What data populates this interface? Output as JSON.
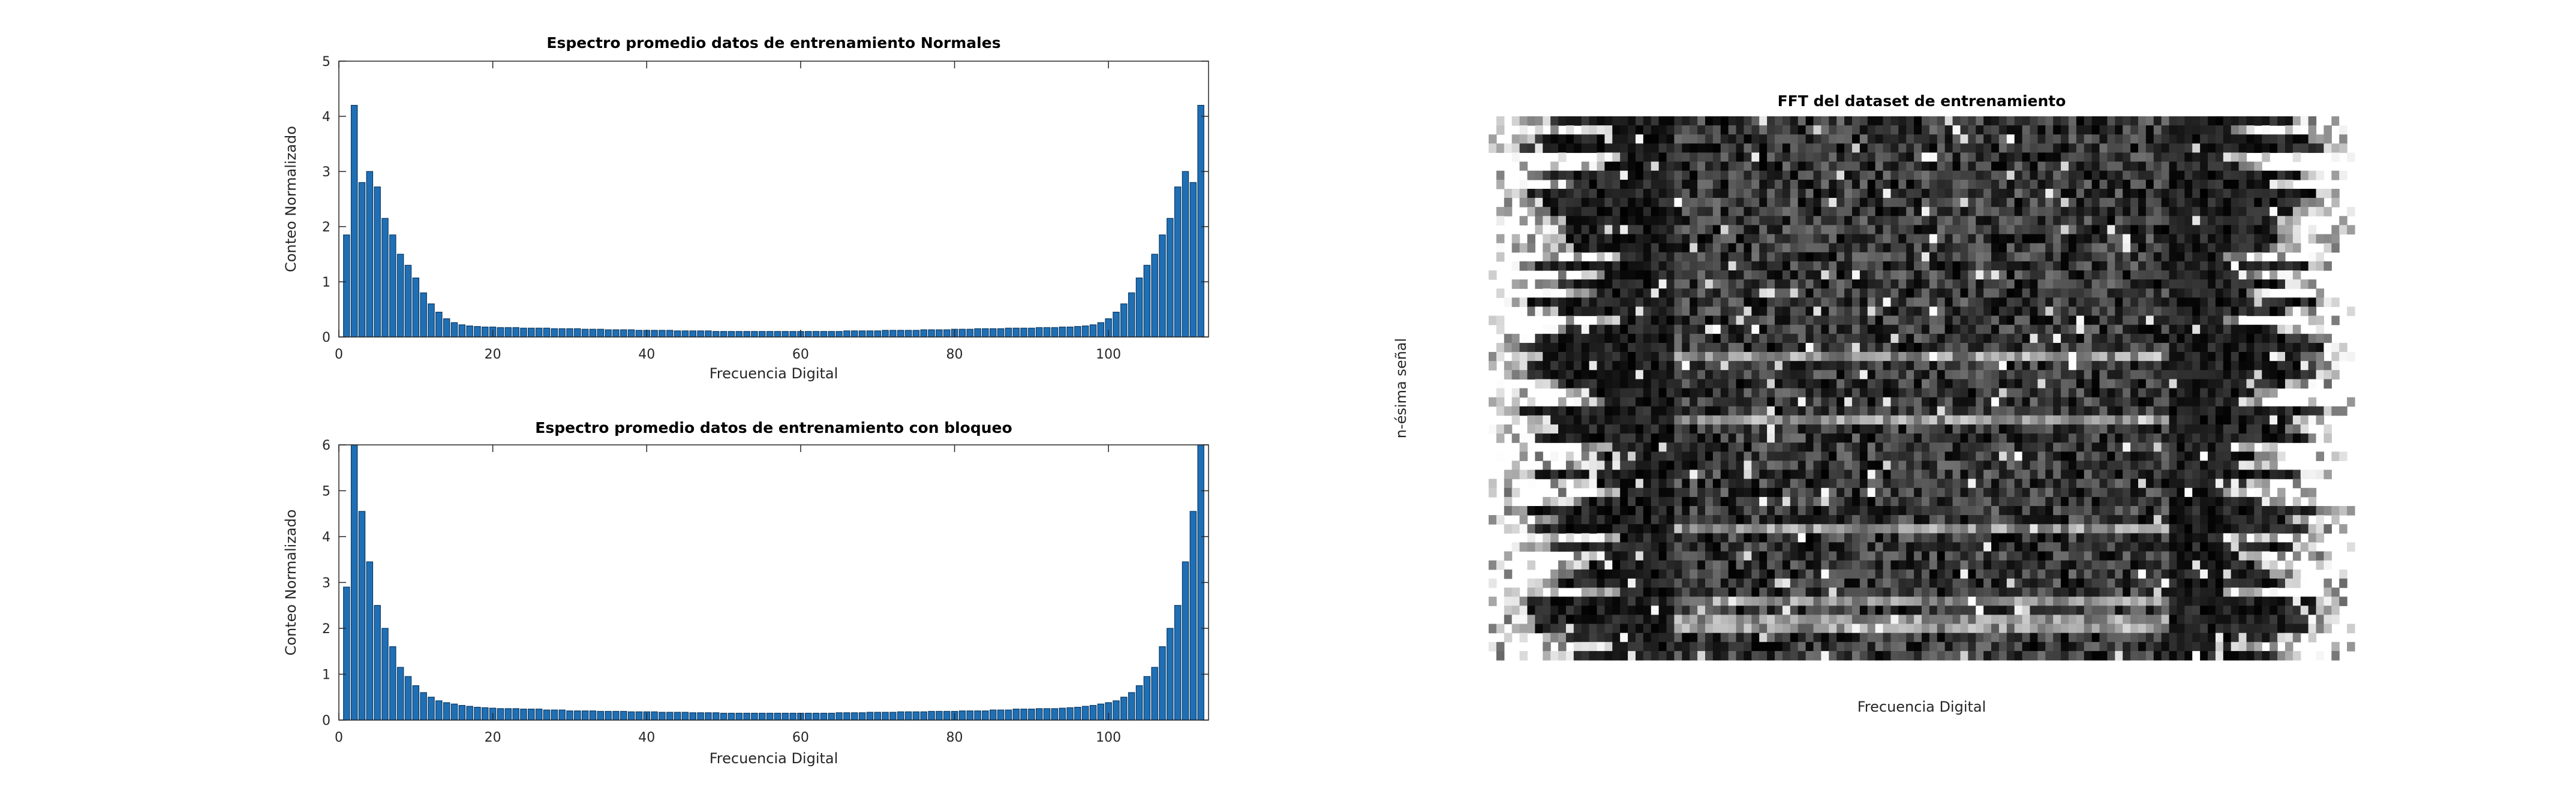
{
  "chart_data": [
    {
      "type": "bar",
      "title": "Espectro promedio datos de entrenamiento Normales",
      "xlabel": "Frecuencia Digital",
      "ylabel": "Conteo Normalizado",
      "color": "#1f6fb5",
      "x": [
        1,
        2,
        3,
        4,
        5,
        6,
        7,
        8,
        9,
        10,
        11,
        12,
        13,
        14,
        15,
        16,
        17,
        18,
        19,
        20,
        21,
        22,
        23,
        24,
        25,
        26,
        27,
        28,
        29,
        30,
        31,
        32,
        33,
        34,
        35,
        36,
        37,
        38,
        39,
        40,
        41,
        42,
        43,
        44,
        45,
        46,
        47,
        48,
        49,
        50,
        51,
        52,
        53,
        54,
        55,
        56,
        57,
        58,
        59,
        60,
        61,
        62,
        63,
        64,
        65,
        66,
        67,
        68,
        69,
        70,
        71,
        72,
        73,
        74,
        75,
        76,
        77,
        78,
        79,
        80,
        81,
        82,
        83,
        84,
        85,
        86,
        87,
        88,
        89,
        90,
        91,
        92,
        93,
        94,
        95,
        96,
        97,
        98,
        99,
        100,
        101,
        102,
        103,
        104,
        105,
        106,
        107,
        108,
        109,
        110,
        111,
        112
      ],
      "values": [
        1.85,
        4.2,
        2.8,
        3.0,
        2.72,
        2.15,
        1.85,
        1.5,
        1.3,
        1.07,
        0.8,
        0.6,
        0.45,
        0.33,
        0.26,
        0.22,
        0.2,
        0.19,
        0.18,
        0.18,
        0.17,
        0.17,
        0.17,
        0.16,
        0.16,
        0.16,
        0.16,
        0.15,
        0.15,
        0.15,
        0.15,
        0.14,
        0.14,
        0.14,
        0.13,
        0.13,
        0.13,
        0.13,
        0.12,
        0.12,
        0.12,
        0.12,
        0.12,
        0.11,
        0.11,
        0.11,
        0.11,
        0.11,
        0.1,
        0.1,
        0.1,
        0.1,
        0.1,
        0.1,
        0.1,
        0.1,
        0.1,
        0.1,
        0.1,
        0.1,
        0.1,
        0.1,
        0.1,
        0.1,
        0.1,
        0.11,
        0.11,
        0.11,
        0.11,
        0.11,
        0.12,
        0.12,
        0.12,
        0.12,
        0.12,
        0.13,
        0.13,
        0.13,
        0.13,
        0.14,
        0.14,
        0.14,
        0.15,
        0.15,
        0.15,
        0.15,
        0.16,
        0.16,
        0.16,
        0.16,
        0.17,
        0.17,
        0.17,
        0.18,
        0.18,
        0.19,
        0.2,
        0.22,
        0.26,
        0.33,
        0.45,
        0.6,
        0.8,
        1.07,
        1.3,
        1.5,
        1.85,
        2.15,
        2.72,
        3.0,
        2.8,
        4.2
      ],
      "xlim": [
        0,
        113
      ],
      "xticks": [
        0,
        20,
        40,
        60,
        80,
        100
      ],
      "ylim": [
        0,
        5
      ],
      "yticks": [
        0,
        1,
        2,
        3,
        4,
        5
      ]
    },
    {
      "type": "bar",
      "title": "Espectro promedio datos de entrenamiento con bloqueo",
      "xlabel": "Frecuencia Digital",
      "ylabel": "Conteo Normalizado",
      "color": "#1f6fb5",
      "x": [
        1,
        2,
        3,
        4,
        5,
        6,
        7,
        8,
        9,
        10,
        11,
        12,
        13,
        14,
        15,
        16,
        17,
        18,
        19,
        20,
        21,
        22,
        23,
        24,
        25,
        26,
        27,
        28,
        29,
        30,
        31,
        32,
        33,
        34,
        35,
        36,
        37,
        38,
        39,
        40,
        41,
        42,
        43,
        44,
        45,
        46,
        47,
        48,
        49,
        50,
        51,
        52,
        53,
        54,
        55,
        56,
        57,
        58,
        59,
        60,
        61,
        62,
        63,
        64,
        65,
        66,
        67,
        68,
        69,
        70,
        71,
        72,
        73,
        74,
        75,
        76,
        77,
        78,
        79,
        80,
        81,
        82,
        83,
        84,
        85,
        86,
        87,
        88,
        89,
        90,
        91,
        92,
        93,
        94,
        95,
        96,
        97,
        98,
        99,
        100,
        101,
        102,
        103,
        104,
        105,
        106,
        107,
        108,
        109,
        110,
        111,
        112
      ],
      "values": [
        2.9,
        6.0,
        4.55,
        3.45,
        2.5,
        2.0,
        1.6,
        1.15,
        0.95,
        0.75,
        0.6,
        0.5,
        0.42,
        0.38,
        0.35,
        0.32,
        0.3,
        0.28,
        0.27,
        0.26,
        0.25,
        0.25,
        0.25,
        0.24,
        0.24,
        0.24,
        0.22,
        0.22,
        0.22,
        0.2,
        0.2,
        0.2,
        0.2,
        0.19,
        0.19,
        0.19,
        0.19,
        0.18,
        0.18,
        0.18,
        0.18,
        0.17,
        0.17,
        0.17,
        0.17,
        0.16,
        0.16,
        0.16,
        0.16,
        0.15,
        0.15,
        0.15,
        0.15,
        0.15,
        0.15,
        0.15,
        0.15,
        0.15,
        0.15,
        0.15,
        0.15,
        0.15,
        0.15,
        0.15,
        0.16,
        0.16,
        0.16,
        0.16,
        0.17,
        0.17,
        0.17,
        0.17,
        0.18,
        0.18,
        0.18,
        0.18,
        0.19,
        0.19,
        0.19,
        0.19,
        0.2,
        0.2,
        0.2,
        0.2,
        0.22,
        0.22,
        0.22,
        0.24,
        0.24,
        0.24,
        0.25,
        0.25,
        0.25,
        0.26,
        0.27,
        0.28,
        0.3,
        0.32,
        0.35,
        0.38,
        0.42,
        0.5,
        0.6,
        0.75,
        0.95,
        1.15,
        1.6,
        2.0,
        2.5,
        3.45,
        4.55,
        6.0
      ],
      "xlim": [
        0,
        113
      ],
      "xticks": [
        0,
        20,
        40,
        60,
        80,
        100
      ],
      "ylim": [
        0,
        6
      ],
      "yticks": [
        0,
        1,
        2,
        3,
        4,
        5,
        6
      ]
    },
    {
      "type": "image",
      "title": "FFT del dataset de entrenamiento",
      "xlabel": "Frecuencia Digital",
      "ylabel": "n-ésima señal"
    }
  ]
}
